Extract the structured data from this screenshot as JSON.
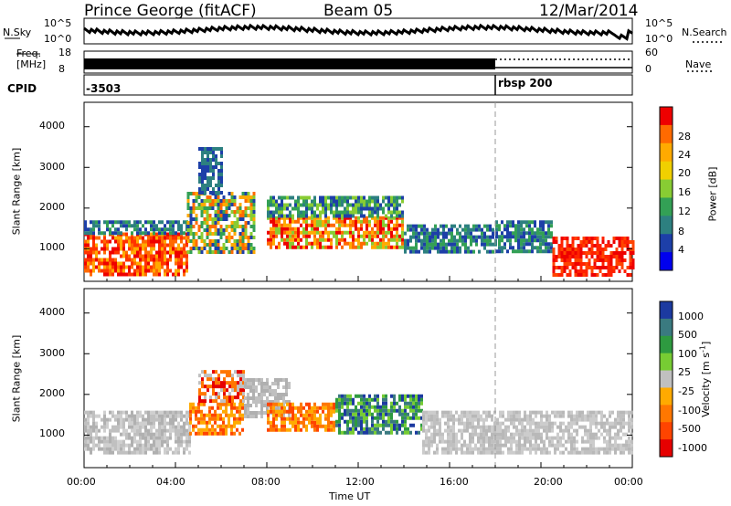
{
  "header": {
    "station": "Prince George (fitACF)",
    "beam": "Beam 05",
    "date": "12/Mar/2014"
  },
  "meta_panels": {
    "nsky_label": "N.Sky",
    "nsky_ticks": [
      "10^5",
      "10^0"
    ],
    "nsearch_label": "N.Search",
    "nsearch_ticks": [
      "10^5",
      "10^0"
    ],
    "freq_label_1": "Freq.",
    "freq_label_2": "[MHz]",
    "freq_ticks": [
      "18",
      "8"
    ],
    "nave_label": "Nave",
    "nave_ticks": [
      "60",
      "0"
    ],
    "cpid_label": "CPID",
    "cpid_values": [
      "-3503",
      "rbsp 200"
    ],
    "cpid_switch_time": "18:00"
  },
  "chart_data": [
    {
      "type": "heatmap",
      "panel": "power",
      "ylabel": "Slant Range [km]",
      "xlabel": "",
      "ylim": [
        200,
        4600
      ],
      "yticks": [
        "4000",
        "3000",
        "2000",
        "1000"
      ],
      "xlim": [
        "00:00",
        "24:00"
      ],
      "colorbar_label": "Power [dB]",
      "colorbar_ticks": [
        "28",
        "24",
        "20",
        "16",
        "12",
        "8",
        "4"
      ],
      "colorbar_colors": [
        "#ee0000",
        "#ff6a00",
        "#ffaa00",
        "#f0d000",
        "#88cc33",
        "#33a055",
        "#2d8080",
        "#1d3fa8",
        "#0000ee"
      ]
    },
    {
      "type": "heatmap",
      "panel": "velocity",
      "ylabel": "Slant Range [km]",
      "xlabel": "Time UT",
      "ylim": [
        200,
        4600
      ],
      "yticks": [
        "4000",
        "3000",
        "2000",
        "1000"
      ],
      "xticks": [
        "00:00",
        "04:00",
        "08:00",
        "12:00",
        "16:00",
        "20:00",
        "00:00"
      ],
      "colorbar_label": "Velocity [m s",
      "colorbar_label_sup": "-1",
      "colorbar_label_end": "]",
      "colorbar_ticks": [
        "1000",
        "500",
        "100",
        "25",
        "-25",
        "-100",
        "-500",
        "-1000"
      ],
      "colorbar_colors": [
        "#1c3aa0",
        "#3a7a80",
        "#2e9a40",
        "#77cc33",
        "#c0c0c0",
        "#ffaa00",
        "#ff7700",
        "#ff4400",
        "#e60000"
      ]
    }
  ]
}
